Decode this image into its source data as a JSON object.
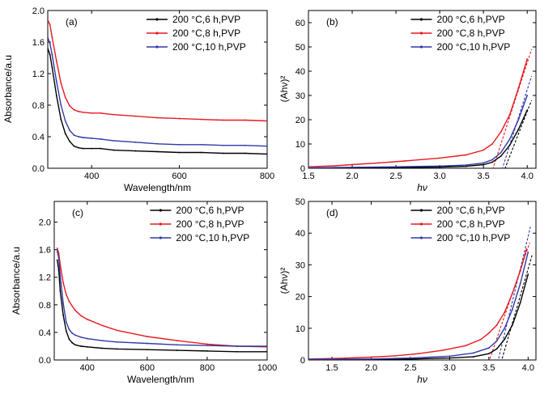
{
  "figure": {
    "panels": [
      "a",
      "b",
      "c",
      "d"
    ]
  },
  "chart_data": [
    {
      "id": "a",
      "type": "line",
      "panel_label": "(a)",
      "title": "",
      "xlabel": "Wavelength/nm",
      "ylabel": "Absorbance/a.u",
      "xlim": [
        300,
        800
      ],
      "ylim": [
        0,
        2.0
      ],
      "xticks": [
        400,
        600,
        800
      ],
      "yticks": [
        0.0,
        0.4,
        0.8,
        1.2,
        1.6,
        2.0
      ],
      "ytick_labels": [
        "0.0",
        "0.4",
        "0.8",
        "1.2",
        "1.6",
        "2.0"
      ],
      "legend_position": "top-right",
      "series": [
        {
          "name": "200 °C,6 h,PVP",
          "color": "#000000",
          "x": [
            300,
            305,
            310,
            320,
            330,
            340,
            350,
            360,
            370,
            380,
            400,
            420,
            450,
            500,
            550,
            600,
            650,
            700,
            750,
            800
          ],
          "y": [
            1.52,
            1.44,
            1.28,
            0.92,
            0.62,
            0.44,
            0.34,
            0.28,
            0.26,
            0.25,
            0.25,
            0.25,
            0.23,
            0.22,
            0.21,
            0.2,
            0.2,
            0.19,
            0.19,
            0.18
          ]
        },
        {
          "name": "200 °C,8 h,PVP",
          "color": "#e8191f",
          "x": [
            300,
            305,
            310,
            320,
            330,
            340,
            350,
            360,
            370,
            380,
            400,
            420,
            450,
            500,
            550,
            600,
            650,
            700,
            750,
            800
          ],
          "y": [
            1.88,
            1.82,
            1.66,
            1.36,
            1.08,
            0.9,
            0.79,
            0.74,
            0.72,
            0.71,
            0.7,
            0.7,
            0.68,
            0.66,
            0.64,
            0.63,
            0.62,
            0.61,
            0.61,
            0.6
          ]
        },
        {
          "name": "200 °C,10 h,PVP",
          "color": "#2f3aa6",
          "x": [
            300,
            305,
            310,
            320,
            330,
            340,
            350,
            360,
            370,
            380,
            400,
            420,
            450,
            500,
            550,
            600,
            650,
            700,
            750,
            800
          ],
          "y": [
            1.66,
            1.58,
            1.44,
            1.1,
            0.8,
            0.6,
            0.48,
            0.42,
            0.4,
            0.39,
            0.38,
            0.37,
            0.35,
            0.33,
            0.31,
            0.3,
            0.3,
            0.29,
            0.29,
            0.28
          ]
        }
      ]
    },
    {
      "id": "b",
      "type": "line",
      "panel_label": "(b)",
      "title": "",
      "xlabel": "hν",
      "ylabel": "(Ahν)²",
      "xlim": [
        1.5,
        4.1
      ],
      "ylim": [
        0,
        65
      ],
      "xticks": [
        1.5,
        2.0,
        2.5,
        3.0,
        3.5,
        4.0
      ],
      "xtick_labels": [
        "1.5",
        "2.0",
        "2.5",
        "3.0",
        "3.5",
        "4.0"
      ],
      "yticks": [
        0,
        10,
        20,
        30,
        40,
        50,
        60
      ],
      "legend_position": "top-right",
      "series": [
        {
          "name": "200 °C,6 h,PVP",
          "color": "#000000",
          "x": [
            1.5,
            2.0,
            2.5,
            3.0,
            3.3,
            3.5,
            3.6,
            3.7,
            3.8,
            3.9,
            4.0
          ],
          "y": [
            0.1,
            0.2,
            0.3,
            0.5,
            0.8,
            1.5,
            2.5,
            5,
            9.5,
            16,
            24
          ]
        },
        {
          "name": "200 °C,8 h,PVP",
          "color": "#e8191f",
          "x": [
            1.5,
            1.8,
            2.0,
            2.3,
            2.6,
            3.0,
            3.3,
            3.5,
            3.6,
            3.7,
            3.8,
            3.9,
            4.0
          ],
          "y": [
            0.6,
            1.0,
            1.5,
            2.2,
            3.0,
            4.2,
            5.5,
            7.5,
            10,
            15,
            22,
            33,
            45
          ]
        },
        {
          "name": "200 °C,10 h,PVP",
          "color": "#2f3aa6",
          "x": [
            1.5,
            2.0,
            2.5,
            3.0,
            3.3,
            3.5,
            3.6,
            3.7,
            3.8,
            3.9,
            4.0
          ],
          "y": [
            0.2,
            0.4,
            0.6,
            0.9,
            1.3,
            2.2,
            3.5,
            6.5,
            12,
            20,
            30
          ]
        }
      ],
      "fit_lines": [
        {
          "color": "#000000",
          "x": [
            3.66,
            4.05
          ],
          "y": [
            -8,
            28
          ]
        },
        {
          "color": "#e8191f",
          "x": [
            3.52,
            4.05
          ],
          "y": [
            -10,
            49
          ]
        },
        {
          "color": "#2f3aa6",
          "x": [
            3.63,
            4.05
          ],
          "y": [
            -10,
            38
          ]
        }
      ]
    },
    {
      "id": "c",
      "type": "line",
      "panel_label": "(c)",
      "title": "",
      "xlabel": "Wavelength/nm",
      "ylabel": "Absorbance/a.u",
      "xlim": [
        290,
        1000
      ],
      "ylim": [
        0,
        2.3
      ],
      "xticks": [
        400,
        600,
        800,
        1000
      ],
      "yticks": [
        0.0,
        0.4,
        0.8,
        1.2,
        1.6,
        2.0
      ],
      "ytick_labels": [
        "0.0",
        "0.4",
        "0.8",
        "1.2",
        "1.6",
        "2.0"
      ],
      "legend_position": "top-right",
      "series": [
        {
          "name": "200 °C,6 h,PVP",
          "color": "#000000",
          "x": [
            300,
            305,
            310,
            320,
            330,
            340,
            350,
            360,
            380,
            400,
            450,
            500,
            600,
            700,
            800,
            900,
            1000
          ],
          "y": [
            1.45,
            1.3,
            1.0,
            0.65,
            0.42,
            0.3,
            0.25,
            0.22,
            0.2,
            0.19,
            0.17,
            0.16,
            0.15,
            0.14,
            0.13,
            0.12,
            0.12
          ]
        },
        {
          "name": "200 °C,8 h,PVP",
          "color": "#e8191f",
          "x": [
            300,
            305,
            310,
            320,
            330,
            340,
            350,
            360,
            380,
            400,
            450,
            500,
            600,
            700,
            800,
            900,
            1000
          ],
          "y": [
            1.62,
            1.55,
            1.38,
            1.12,
            0.95,
            0.85,
            0.78,
            0.72,
            0.64,
            0.59,
            0.5,
            0.43,
            0.34,
            0.28,
            0.23,
            0.2,
            0.19
          ]
        },
        {
          "name": "200 °C,10 h,PVP",
          "color": "#2f3aa6",
          "x": [
            300,
            305,
            310,
            320,
            330,
            340,
            350,
            360,
            380,
            400,
            450,
            500,
            600,
            700,
            800,
            900,
            1000
          ],
          "y": [
            1.58,
            1.48,
            1.22,
            0.82,
            0.55,
            0.44,
            0.39,
            0.36,
            0.33,
            0.31,
            0.28,
            0.26,
            0.24,
            0.22,
            0.21,
            0.2,
            0.2
          ]
        }
      ]
    },
    {
      "id": "d",
      "type": "line",
      "panel_label": "(d)",
      "title": "",
      "xlabel": "hν",
      "ylabel": "(Ahν)²",
      "xlim": [
        1.2,
        4.1
      ],
      "ylim": [
        0,
        50
      ],
      "xticks": [
        1.5,
        2.0,
        2.5,
        3.0,
        3.5,
        4.0
      ],
      "xtick_labels": [
        "1.5",
        "2.0",
        "2.5",
        "3.0",
        "3.5",
        "4.0"
      ],
      "yticks": [
        0,
        10,
        20,
        30,
        40,
        50
      ],
      "legend_position": "top-right",
      "series": [
        {
          "name": "200 °C,6 h,PVP",
          "color": "#000000",
          "x": [
            1.2,
            2.0,
            2.5,
            3.0,
            3.3,
            3.5,
            3.6,
            3.7,
            3.8,
            3.9,
            4.0
          ],
          "y": [
            0.1,
            0.2,
            0.3,
            0.6,
            1.0,
            2.0,
            3.5,
            6.5,
            11,
            18,
            27
          ]
        },
        {
          "name": "200 °C,8 h,PVP",
          "color": "#e8191f",
          "x": [
            1.2,
            1.6,
            2.0,
            2.3,
            2.6,
            2.9,
            3.2,
            3.4,
            3.5,
            3.6,
            3.7,
            3.8,
            3.9,
            3.98
          ],
          "y": [
            0.3,
            0.5,
            0.9,
            1.3,
            2.0,
            3.0,
            4.5,
            6.5,
            8.5,
            11,
            15,
            21,
            28,
            35
          ]
        },
        {
          "name": "200 °C,10 h,PVP",
          "color": "#2f3aa6",
          "x": [
            1.2,
            2.0,
            2.5,
            3.0,
            3.3,
            3.5,
            3.6,
            3.7,
            3.8,
            3.9,
            4.0
          ],
          "y": [
            0.2,
            0.3,
            0.6,
            1.2,
            2.2,
            3.8,
            6,
            10,
            16,
            24,
            34
          ]
        }
      ],
      "fit_lines": [
        {
          "color": "#000000",
          "x": [
            3.64,
            4.05
          ],
          "y": [
            -2,
            33
          ]
        },
        {
          "color": "#e8191f",
          "x": [
            3.48,
            4.02
          ],
          "y": [
            -2,
            37
          ]
        },
        {
          "color": "#2f3aa6",
          "x": [
            3.6,
            4.03
          ],
          "y": [
            -2,
            42
          ]
        }
      ]
    }
  ]
}
